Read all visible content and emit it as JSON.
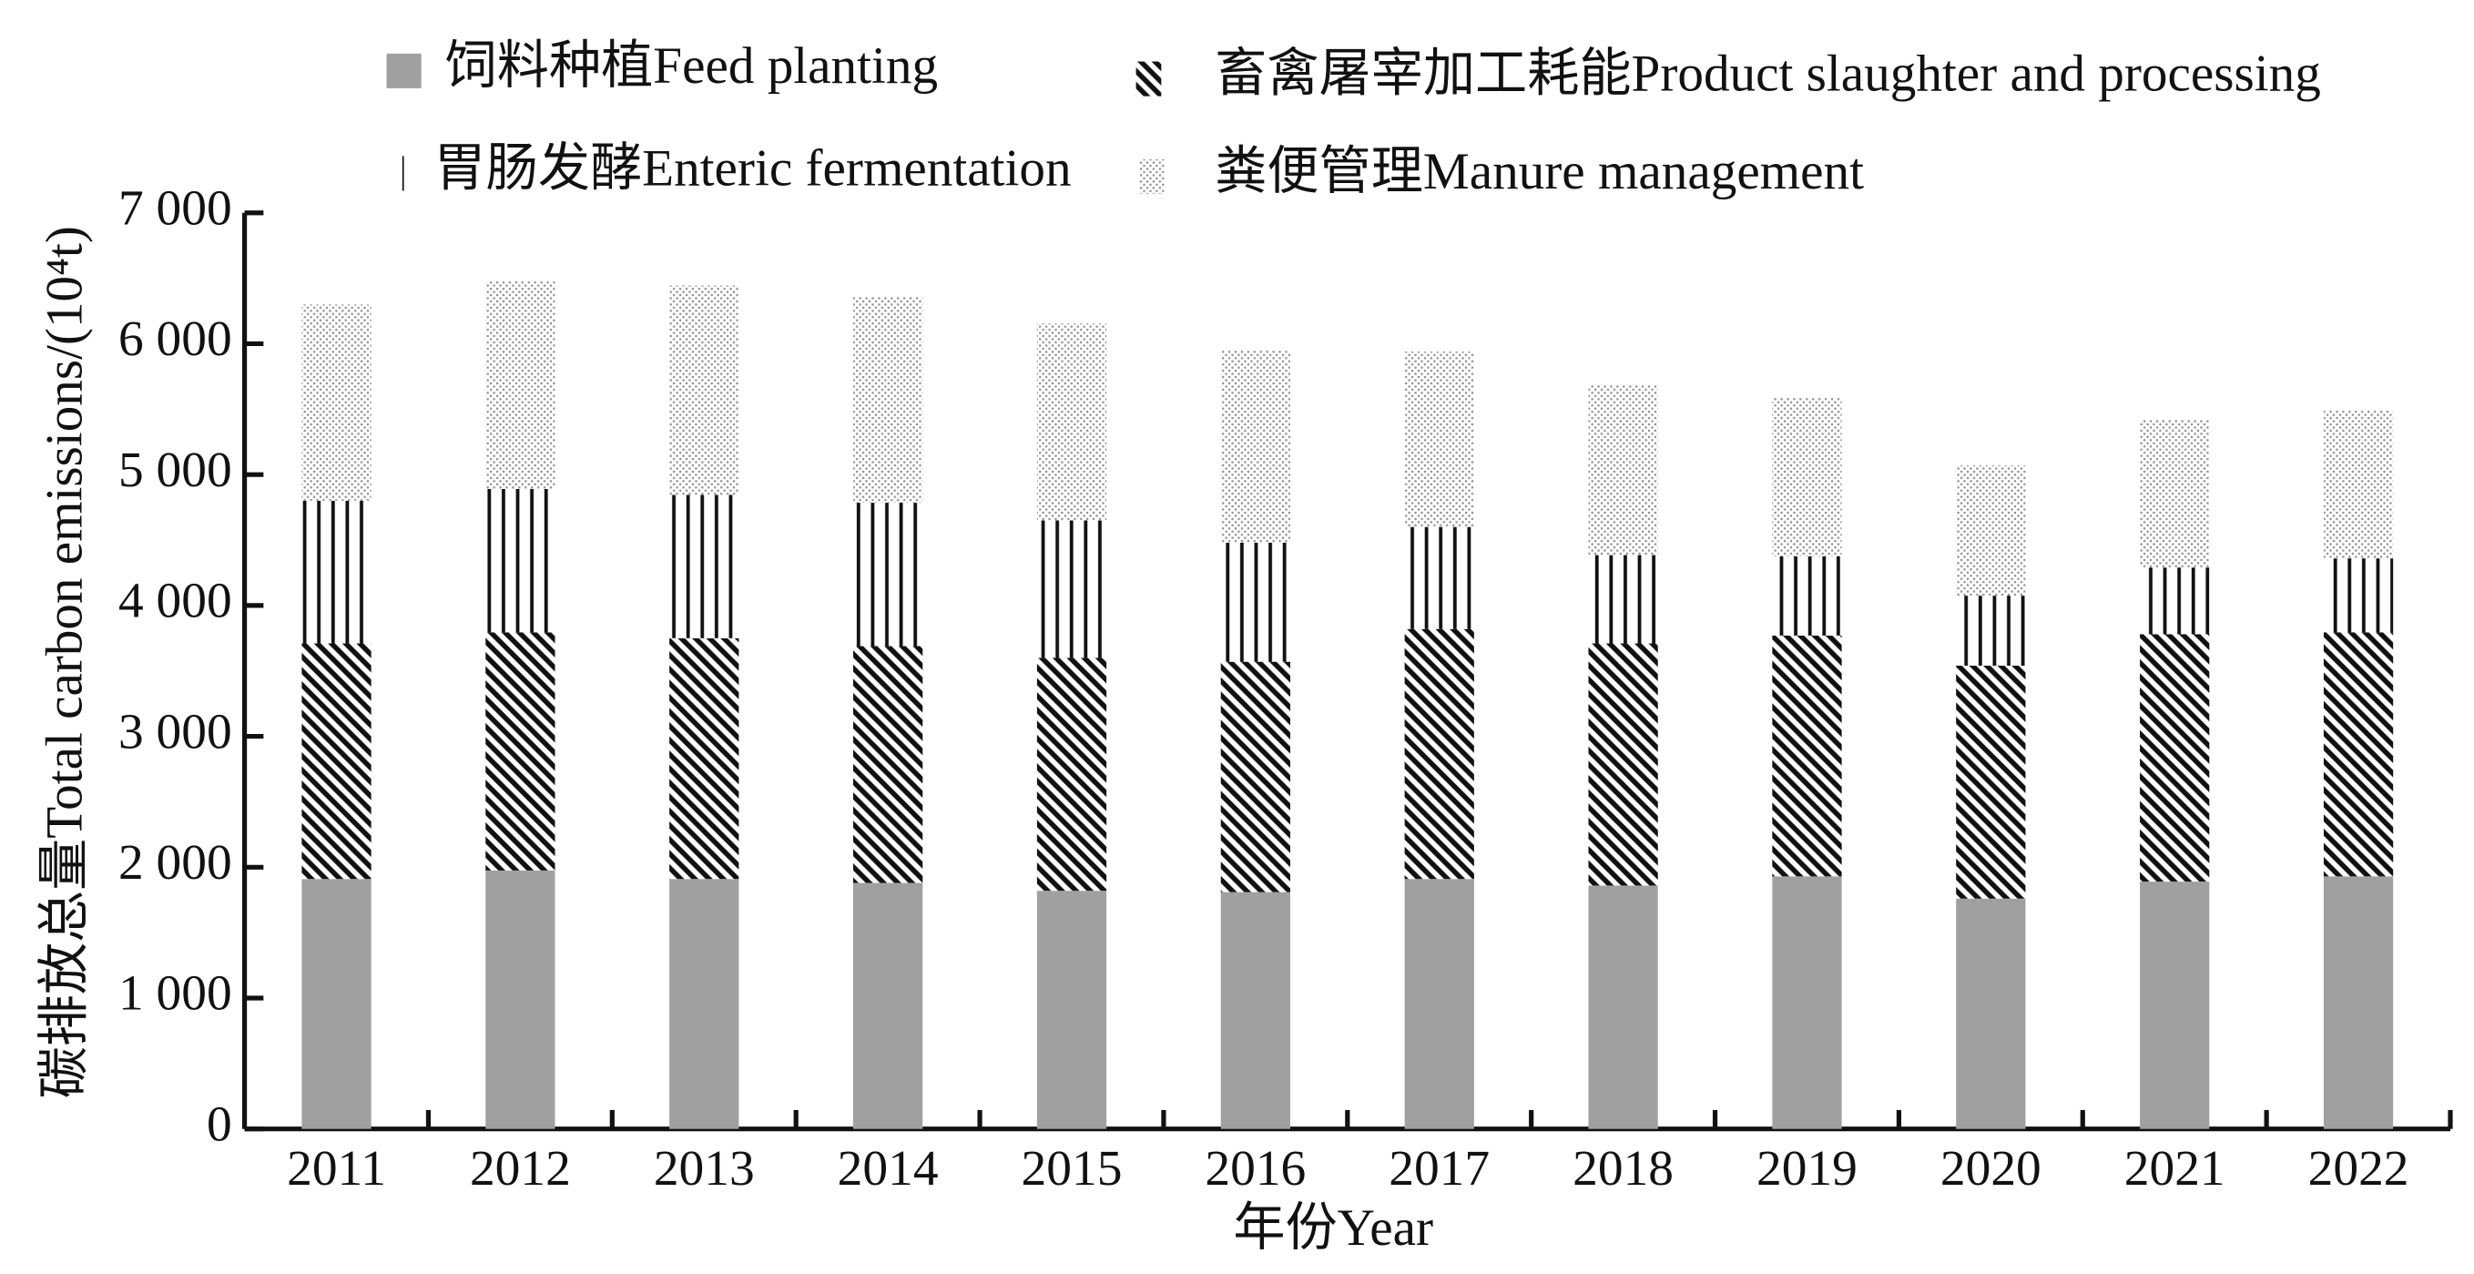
{
  "chart_data": {
    "type": "stacked_bar",
    "x_label": "年份Year",
    "y_label": "碳排放总量Total carbon emissions/(10⁴t)",
    "categories": [
      "2011",
      "2012",
      "2013",
      "2014",
      "2015",
      "2016",
      "2017",
      "2018",
      "2019",
      "2020",
      "2021",
      "2022"
    ],
    "series": [
      {
        "name": "饲料种植Feed planting",
        "color": "#a0a0a0",
        "pattern": "solid",
        "values": [
          1910,
          1975,
          1910,
          1880,
          1820,
          1810,
          1910,
          1860,
          1930,
          1760,
          1890,
          1930
        ]
      },
      {
        "name": "畜禽屠宰加工耗能Product slaughter and processing",
        "color": "#111111",
        "pattern": "diagonal",
        "values": [
          1800,
          1820,
          1840,
          1810,
          1780,
          1760,
          1910,
          1850,
          1840,
          1780,
          1890,
          1865
        ]
      },
      {
        "name": "胃肠发酵Enteric fermentation",
        "color": "#111111",
        "pattern": "vertical",
        "values": [
          1090,
          1095,
          1095,
          1095,
          1050,
          910,
          780,
          675,
          605,
          535,
          510,
          565
        ]
      },
      {
        "name": "粪便管理Manure management",
        "color": "#909090",
        "pattern": "dots",
        "values": [
          1500,
          1590,
          1600,
          1575,
          1505,
          1470,
          1340,
          1305,
          1215,
          995,
          1130,
          1130
        ]
      }
    ],
    "ylim": [
      0,
      7000
    ],
    "yticks": [
      0,
      {
        "value": 1000,
        "label": "1 000"
      },
      {
        "value": 2000,
        "label": "2 000"
      },
      {
        "value": 3000,
        "label": "3 000"
      },
      {
        "value": 4000,
        "label": "4 000"
      },
      {
        "value": 5000,
        "label": "5 000"
      },
      {
        "value": 6000,
        "label": "6 000"
      },
      {
        "value": 7000,
        "label": "7 000"
      }
    ],
    "grid": false
  }
}
